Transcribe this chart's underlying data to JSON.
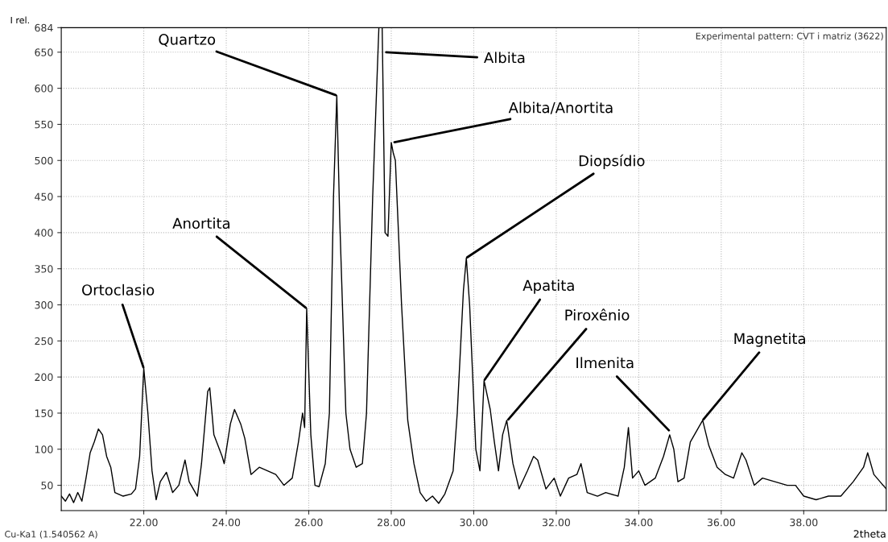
{
  "chart_data": {
    "type": "line",
    "xlabel": "2theta",
    "ylabel": "I rel.",
    "annotations": [
      "Experimental pattern: CVT i matriz (3622)",
      "Cu-Ka1 (1.540562 A)",
      {
        "text": "Ortoclasio",
        "x": 22.0,
        "y": 212
      },
      {
        "text": "Anortita",
        "x": 25.95,
        "y": 295
      },
      {
        "text": "Quartzo",
        "x": 26.68,
        "y": 590
      },
      {
        "text": "Albita",
        "x": 27.85,
        "y": 650
      },
      {
        "text": "Albita/Anortita",
        "x": 28.05,
        "y": 525
      },
      {
        "text": "Diopsídio",
        "x": 29.82,
        "y": 365
      },
      {
        "text": "Apatita",
        "x": 30.25,
        "y": 195
      },
      {
        "text": "Piroxênio",
        "x": 30.82,
        "y": 140
      },
      {
        "text": "Ilmenita",
        "x": 34.75,
        "y": 125
      },
      {
        "text": "Magnetita",
        "x": 35.55,
        "y": 140
      }
    ],
    "series": [
      {
        "color": "#000000",
        "x": [
          20.0,
          20.1,
          20.2,
          20.3,
          20.4,
          20.5,
          20.6,
          20.7,
          20.8,
          20.9,
          21.0,
          21.1,
          21.2,
          21.3,
          21.5,
          21.7,
          21.8,
          21.9,
          22.0,
          22.1,
          22.2,
          22.3,
          22.4,
          22.55,
          22.7,
          22.85,
          23.0,
          23.1,
          23.3,
          23.4,
          23.55,
          23.6,
          23.7,
          23.9,
          23.95,
          24.1,
          24.2,
          24.35,
          24.45,
          24.6,
          24.8,
          25.0,
          25.2,
          25.4,
          25.6,
          25.75,
          25.85,
          25.9,
          25.95,
          26.05,
          26.15,
          26.25,
          26.4,
          26.5,
          26.6,
          26.68,
          26.75,
          26.9,
          27.0,
          27.15,
          27.3,
          27.4,
          27.55,
          27.7,
          27.78,
          27.85,
          27.92,
          28.0,
          28.05,
          28.1,
          28.25,
          28.4,
          28.55,
          28.7,
          28.85,
          29.0,
          29.15,
          29.3,
          29.5,
          29.6,
          29.75,
          29.82,
          29.9,
          30.05,
          30.15,
          30.25,
          30.4,
          30.5,
          30.6,
          30.7,
          30.8,
          30.95,
          31.1,
          31.3,
          31.45,
          31.55,
          31.75,
          31.95,
          32.1,
          32.3,
          32.5,
          32.6,
          32.75,
          33.0,
          33.2,
          33.5,
          33.65,
          33.75,
          33.85,
          34.0,
          34.15,
          34.4,
          34.6,
          34.75,
          34.85,
          34.95,
          35.1,
          35.25,
          35.4,
          35.55,
          35.7,
          35.9,
          36.1,
          36.3,
          36.5,
          36.6,
          36.8,
          37.0,
          37.3,
          37.6,
          37.8,
          38.0,
          38.3,
          38.6,
          38.9,
          39.2,
          39.45,
          39.55,
          39.7,
          39.85,
          40.0
        ],
        "values": [
          35,
          28,
          38,
          26,
          40,
          28,
          60,
          95,
          110,
          128,
          120,
          90,
          75,
          40,
          35,
          38,
          45,
          90,
          212,
          150,
          70,
          30,
          55,
          68,
          40,
          50,
          85,
          55,
          35,
          80,
          180,
          185,
          120,
          90,
          80,
          135,
          155,
          135,
          115,
          65,
          75,
          70,
          65,
          50,
          60,
          110,
          150,
          130,
          295,
          120,
          50,
          48,
          80,
          150,
          450,
          590,
          420,
          150,
          100,
          75,
          80,
          150,
          450,
          684,
          684,
          400,
          395,
          525,
          510,
          500,
          300,
          140,
          80,
          40,
          28,
          35,
          25,
          38,
          70,
          150,
          320,
          365,
          300,
          100,
          70,
          195,
          155,
          110,
          70,
          120,
          140,
          80,
          45,
          70,
          90,
          85,
          45,
          60,
          35,
          60,
          65,
          80,
          40,
          35,
          40,
          35,
          75,
          130,
          60,
          70,
          50,
          60,
          90,
          120,
          100,
          55,
          60,
          110,
          125,
          140,
          105,
          75,
          65,
          60,
          95,
          85,
          50,
          60,
          55,
          50,
          50,
          35,
          30,
          35,
          35,
          55,
          75,
          95,
          65,
          55,
          45
        ]
      }
    ],
    "xlim": [
      20,
      40
    ],
    "ylim": [
      15,
      684
    ],
    "xticks": [
      {
        "value": 22,
        "label": "22.00"
      },
      {
        "value": 24,
        "label": "24.00"
      },
      {
        "value": 26,
        "label": "26.00"
      },
      {
        "value": 28,
        "label": "28.00"
      },
      {
        "value": 30,
        "label": "30.00"
      },
      {
        "value": 32,
        "label": "32.00"
      },
      {
        "value": 34,
        "label": "34.00"
      },
      {
        "value": 36,
        "label": "36.00"
      },
      {
        "value": 38,
        "label": "38.00"
      }
    ],
    "yticks": [
      50,
      100,
      150,
      200,
      250,
      300,
      350,
      400,
      450,
      500,
      550,
      600,
      650,
      684
    ],
    "grid": true
  }
}
